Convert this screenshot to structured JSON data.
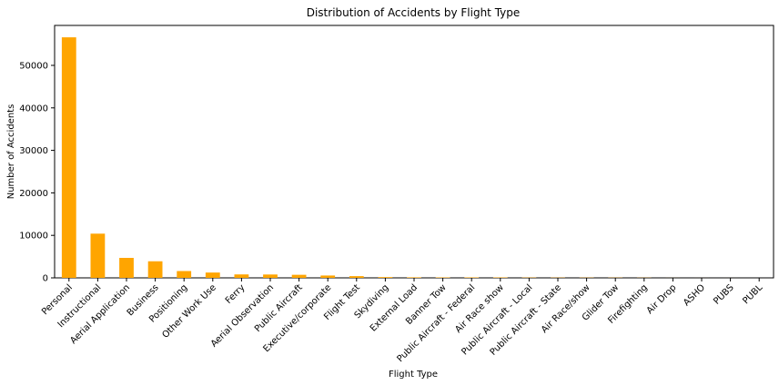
{
  "chart_data": {
    "type": "bar",
    "title": "Distribution of Accidents by Flight Type",
    "xlabel": "Flight Type",
    "ylabel": "Number of Accidents",
    "ylim": [
      0,
      59400
    ],
    "yticks": [
      0,
      10000,
      20000,
      30000,
      40000,
      50000
    ],
    "grid": false,
    "legend": "none",
    "bar_color": "#ffa500",
    "categories": [
      "Personal",
      "Instructional",
      "Aerial Application",
      "Business",
      "Positioning",
      "Other Work Use",
      "Ferry",
      "Aerial Observation",
      "Public Aircraft",
      "Executive/corporate",
      "Flight Test",
      "Skydiving",
      "External Load",
      "Banner Tow",
      "Public Aircraft - Federal",
      "Air Race show",
      "Public Aircraft - Local",
      "Public Aircraft - State",
      "Air Race/show",
      "Glider Tow",
      "Firefighting",
      "Air Drop",
      "ASHO",
      "PUBS",
      "PUBL"
    ],
    "values": [
      56600,
      10400,
      4700,
      3900,
      1600,
      1250,
      810,
      790,
      720,
      550,
      405,
      180,
      123,
      101,
      105,
      99,
      74,
      64,
      59,
      53,
      40,
      11,
      6,
      4,
      1
    ]
  }
}
